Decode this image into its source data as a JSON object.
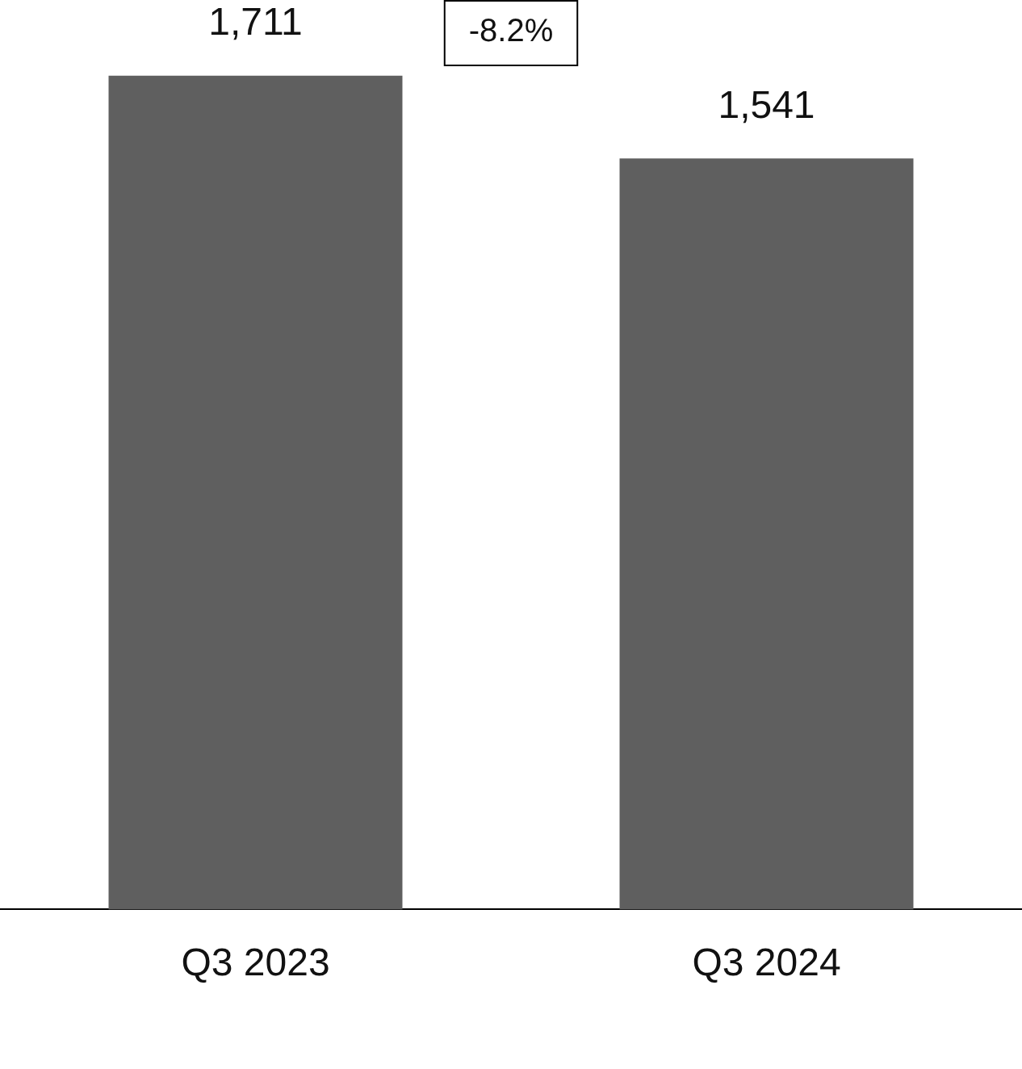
{
  "chart_data": {
    "type": "bar",
    "categories": [
      "Q3 2023",
      "Q3 2024"
    ],
    "values": [
      1711,
      1541
    ],
    "value_labels": [
      "1,711",
      "1,541"
    ],
    "color": "#5f5f5f",
    "tick_labels": "x",
    "grid": false,
    "legend": false,
    "annotations": [
      "-8.2%"
    ]
  }
}
